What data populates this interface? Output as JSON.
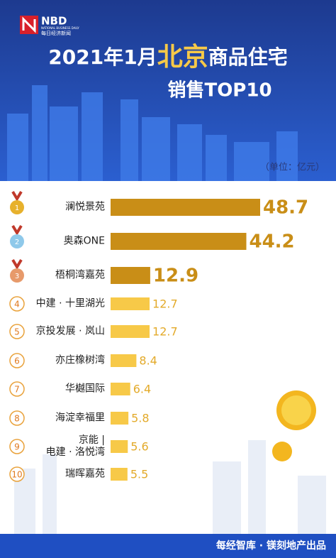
{
  "logo": {
    "mark": "NBD",
    "english": "NATIONAL BUSINESS DAILY",
    "chinese": "每日经济新闻"
  },
  "chart_data": {
    "type": "bar",
    "title": {
      "prefix": "2021年1月",
      "highlight": "北京",
      "suffix": "商品住宅",
      "line2": "销售TOP10"
    },
    "unit": "（单位：亿元）",
    "ranks": [
      1,
      2,
      3,
      4,
      5,
      6,
      7,
      8,
      9,
      10
    ],
    "categories": [
      "澜悦景苑",
      "奥森ONE",
      "梧桐湾嘉苑",
      "中建 · 十里湖光",
      "京投发展 · 岚山",
      "亦庄橡树湾",
      "华樾国际",
      "海淀幸福里",
      "京能 |\n电建 · 洛悦湾",
      "瑞晖嘉苑"
    ],
    "values": [
      48.7,
      44.2,
      12.9,
      12.7,
      12.7,
      8.4,
      6.4,
      5.8,
      5.6,
      5.5
    ],
    "colors": [
      "#c98e17",
      "#c98e17",
      "#c98e17",
      "#f7c948",
      "#f7c948",
      "#f7c948",
      "#f7c948",
      "#f7c948",
      "#f7c948",
      "#f7c948"
    ]
  },
  "footer": "每经智库 · 镁刻地产出品"
}
